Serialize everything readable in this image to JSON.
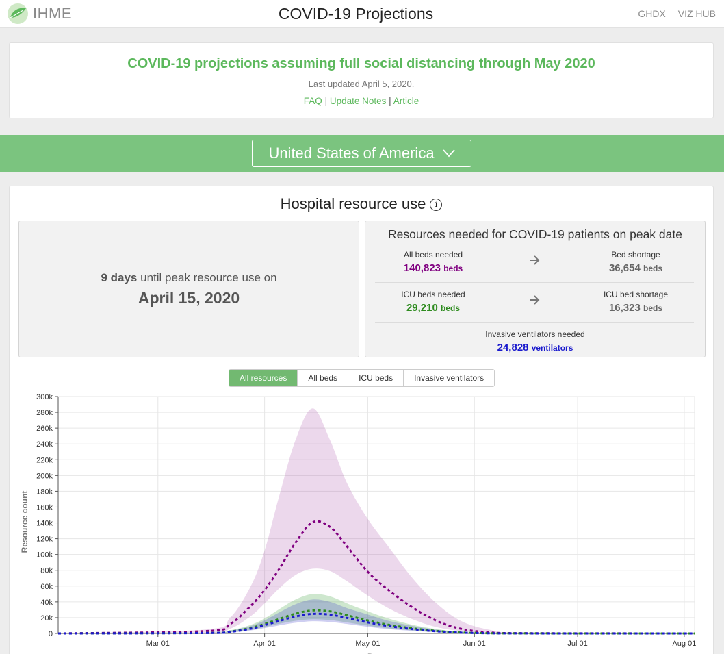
{
  "header": {
    "logo_text": "IHME",
    "title": "COVID-19 Projections",
    "nav": [
      "GHDX",
      "VIZ HUB"
    ]
  },
  "banner": {
    "headline": "COVID-19 projections assuming full social distancing through May 2020",
    "updated": "Last updated April 5, 2020.",
    "links": [
      "FAQ",
      "Update Notes",
      "Article"
    ],
    "separator": "|"
  },
  "location": {
    "selected": "United States of America"
  },
  "section": {
    "title": "Hospital resource use",
    "peak": {
      "days": "9 days",
      "text": "until peak resource use on",
      "date": "April 15, 2020"
    },
    "resources": {
      "title": "Resources needed for COVID-19 patients on peak date",
      "all_beds": {
        "label": "All beds needed",
        "value": "140,823",
        "unit": "beds"
      },
      "bed_shortage": {
        "label": "Bed shortage",
        "value": "36,654",
        "unit": "beds"
      },
      "icu_beds": {
        "label": "ICU beds needed",
        "value": "29,210",
        "unit": "beds"
      },
      "icu_shortage": {
        "label": "ICU bed shortage",
        "value": "16,323",
        "unit": "beds"
      },
      "ventilators": {
        "label": "Invasive ventilators needed",
        "value": "24,828",
        "unit": "ventilators"
      }
    }
  },
  "tabs": [
    "All resources",
    "All beds",
    "ICU beds",
    "Invasive ventilators"
  ],
  "active_tab": "All resources",
  "colors": {
    "green": "#5cb85c",
    "all_beds": "#800080",
    "icu": "#2e8b1f",
    "ventilators": "#1a1acd",
    "shortage": "#666666"
  },
  "chart_data": {
    "type": "line",
    "ylabel": "Resource count",
    "xlabel": "Date",
    "ylim": [
      0,
      300000
    ],
    "y_ticks": [
      0,
      20000,
      40000,
      60000,
      80000,
      100000,
      120000,
      140000,
      160000,
      180000,
      200000,
      220000,
      240000,
      260000,
      280000,
      300000
    ],
    "y_tick_labels": [
      "0",
      "20k",
      "40k",
      "60k",
      "80k",
      "100k",
      "120k",
      "140k",
      "160k",
      "180k",
      "200k",
      "220k",
      "240k",
      "260k",
      "280k",
      "300k"
    ],
    "x_start": "2020-02-01",
    "x_end": "2020-08-04",
    "x_ticks": [
      "2020-03-01",
      "2020-04-01",
      "2020-05-01",
      "2020-06-01",
      "2020-07-01",
      "2020-08-01"
    ],
    "x_tick_labels": [
      "Mar 01",
      "Apr 01",
      "May 01",
      "Jun 01",
      "Jul 01",
      "Aug 01"
    ],
    "grid": true,
    "series": [
      {
        "name": "All beds needed",
        "color": "#800080",
        "x": [
          "2020-02-01",
          "2020-03-15",
          "2020-03-22",
          "2020-03-28",
          "2020-04-01",
          "2020-04-05",
          "2020-04-10",
          "2020-04-15",
          "2020-04-20",
          "2020-04-25",
          "2020-05-01",
          "2020-05-07",
          "2020-05-14",
          "2020-05-21",
          "2020-05-28",
          "2020-06-05",
          "2020-06-15",
          "2020-08-04"
        ],
        "values": [
          0,
          3000,
          12000,
          35000,
          55000,
          80000,
          115000,
          140823,
          135000,
          110000,
          78000,
          55000,
          33000,
          16000,
          6000,
          1500,
          300,
          0
        ],
        "lower": [
          0,
          1000,
          6000,
          22000,
          38000,
          56000,
          74000,
          82000,
          79000,
          66000,
          48000,
          32000,
          18000,
          8000,
          3000,
          600,
          100,
          0
        ],
        "upper": [
          0,
          5000,
          20000,
          60000,
          105000,
          170000,
          245000,
          285000,
          245000,
          190000,
          145000,
          110000,
          70000,
          38000,
          16000,
          5000,
          1000,
          0
        ]
      },
      {
        "name": "ICU beds needed",
        "color": "#2e8b1f",
        "x": [
          "2020-02-01",
          "2020-03-15",
          "2020-03-22",
          "2020-03-28",
          "2020-04-01",
          "2020-04-05",
          "2020-04-10",
          "2020-04-15",
          "2020-04-20",
          "2020-04-25",
          "2020-05-01",
          "2020-05-07",
          "2020-05-14",
          "2020-05-21",
          "2020-05-28",
          "2020-06-05",
          "2020-06-15",
          "2020-08-04"
        ],
        "values": [
          0,
          600,
          2500,
          7000,
          12000,
          18000,
          25000,
          29210,
          28000,
          23000,
          16500,
          11000,
          6500,
          3200,
          1200,
          300,
          80,
          0
        ],
        "lower": [
          0,
          300,
          1500,
          4500,
          8000,
          12000,
          16000,
          18000,
          17000,
          14000,
          10000,
          6500,
          3800,
          1800,
          700,
          150,
          40,
          0
        ],
        "upper": [
          0,
          1000,
          4000,
          11000,
          19000,
          30000,
          43000,
          50000,
          47000,
          38000,
          28000,
          19000,
          11000,
          5500,
          2000,
          600,
          150,
          0
        ]
      },
      {
        "name": "Invasive ventilators needed",
        "color": "#1a1acd",
        "x": [
          "2020-02-01",
          "2020-03-15",
          "2020-03-22",
          "2020-03-28",
          "2020-04-01",
          "2020-04-05",
          "2020-04-10",
          "2020-04-15",
          "2020-04-20",
          "2020-04-25",
          "2020-05-01",
          "2020-05-07",
          "2020-05-14",
          "2020-05-21",
          "2020-05-28",
          "2020-06-05",
          "2020-06-15",
          "2020-08-04"
        ],
        "values": [
          0,
          500,
          2100,
          6000,
          10500,
          15500,
          21500,
          24828,
          23800,
          19600,
          14000,
          9400,
          5500,
          2700,
          1000,
          250,
          60,
          0
        ],
        "lower": [
          0,
          250,
          1200,
          3800,
          6800,
          10000,
          13500,
          15500,
          14500,
          12000,
          8500,
          5500,
          3200,
          1500,
          600,
          120,
          30,
          0
        ],
        "upper": [
          0,
          900,
          3500,
          9500,
          16500,
          26000,
          37000,
          43000,
          40000,
          32000,
          24000,
          16000,
          9500,
          4700,
          1700,
          500,
          120,
          0
        ]
      }
    ]
  }
}
